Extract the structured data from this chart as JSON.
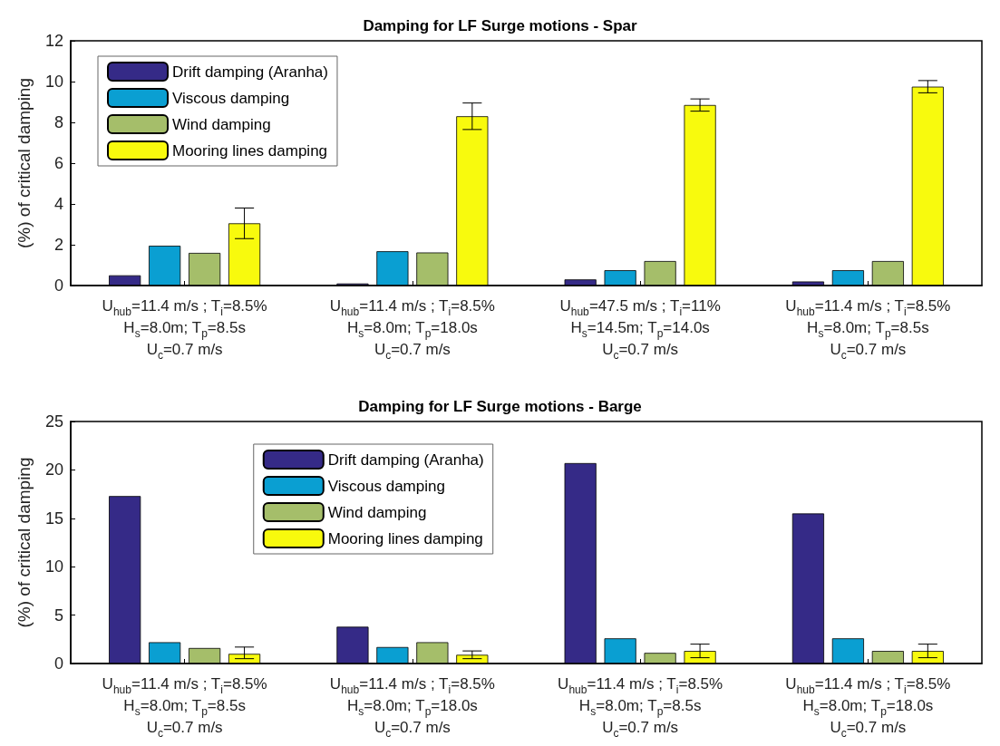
{
  "chart_data": [
    {
      "type": "bar",
      "title": "Damping for LF Surge motions - Spar",
      "ylabel": "(%) of critical damping",
      "categories": [
        "U$_{hub}$=11.4 m/s ; T$_{i}$=8.5%\nH$_{s}$=8.0m; T$_{p}$=8.5s\nU$_{c}$=0.7 m/s",
        "U$_{hub}$=11.4 m/s ; T$_{i}$=8.5%\nH$_{s}$=8.0m; T$_{p}$=18.0s\nU$_{c}$=0.7 m/s",
        "U$_{hub}$=47.5 m/s ; T$_{i}$=11%\nH$_{s}$=14.5m; T$_{p}$=14.0s\nU$_{c}$=0.7 m/s",
        "U$_{hub}$=11.4 m/s ; T$_{i}$=8.5%\nH$_{s}$=8.0m; T$_{p}$=8.5s\nU$_{c}$=0.7 m/s"
      ],
      "series": [
        {
          "name": "Drift damping (Aranha)",
          "color": "#352a87",
          "values": [
            0.5,
            0.1,
            0.3,
            0.2
          ]
        },
        {
          "name": "Viscous damping",
          "color": "#0a9fd2",
          "values": [
            1.95,
            1.68,
            0.75,
            0.75
          ]
        },
        {
          "name": "Wind damping",
          "color": "#a5be6a",
          "values": [
            1.6,
            1.62,
            1.2,
            1.2
          ]
        },
        {
          "name": "Mooring lines damping",
          "color": "#f8fa0d",
          "values": [
            3.05,
            8.3,
            8.85,
            9.75
          ],
          "errors": [
            [
              2.3,
              3.8
            ],
            [
              7.65,
              8.95
            ],
            [
              8.55,
              9.15
            ],
            [
              9.45,
              10.05
            ]
          ]
        }
      ],
      "ylim": [
        0,
        12
      ],
      "yticks": [
        0,
        2,
        4,
        6,
        8,
        10,
        12
      ],
      "grid": false,
      "legend": "top left"
    },
    {
      "type": "bar",
      "title": "Damping for LF Surge motions - Barge",
      "ylabel": "(%) of critical damping",
      "categories": [
        "U$_{hub}$=11.4 m/s ; T$_{i}$=8.5%\nH$_{s}$=8.0m; T$_{p}$=8.5s\nU$_{c}$=0.7 m/s",
        "U$_{hub}$=11.4 m/s ; T$_{i}$=8.5%\nH$_{s}$=8.0m; T$_{p}$=18.0s\nU$_{c}$=0.7 m/s",
        "U$_{hub}$=11.4 m/s ; T$_{i}$=8.5%\nH$_{s}$=8.0m; T$_{p}$=8.5s\nU$_{c}$=0.7 m/s",
        "U$_{hub}$=11.4 m/s ; T$_{i}$=8.5%\nH$_{s}$=8.0m; T$_{p}$=18.0s\nU$_{c}$=0.7 m/s"
      ],
      "series": [
        {
          "name": "Drift damping (Aranha)",
          "color": "#352a87",
          "values": [
            17.3,
            3.8,
            20.7,
            15.5
          ]
        },
        {
          "name": "Viscous damping",
          "color": "#0a9fd2",
          "values": [
            2.2,
            1.7,
            2.6,
            2.6
          ]
        },
        {
          "name": "Wind damping",
          "color": "#a5be6a",
          "values": [
            1.6,
            2.2,
            1.1,
            1.3
          ]
        },
        {
          "name": "Mooring lines damping",
          "color": "#f8fa0d",
          "values": [
            1.0,
            0.9,
            1.3,
            1.3
          ],
          "errors": [
            [
              0.5,
              1.7
            ],
            [
              0.5,
              1.3
            ],
            [
              0.6,
              2.0
            ],
            [
              0.6,
              2.0
            ]
          ]
        }
      ],
      "ylim": [
        0,
        25
      ],
      "yticks": [
        0,
        5,
        10,
        15,
        20,
        25
      ],
      "grid": false,
      "legend": "top"
    }
  ]
}
